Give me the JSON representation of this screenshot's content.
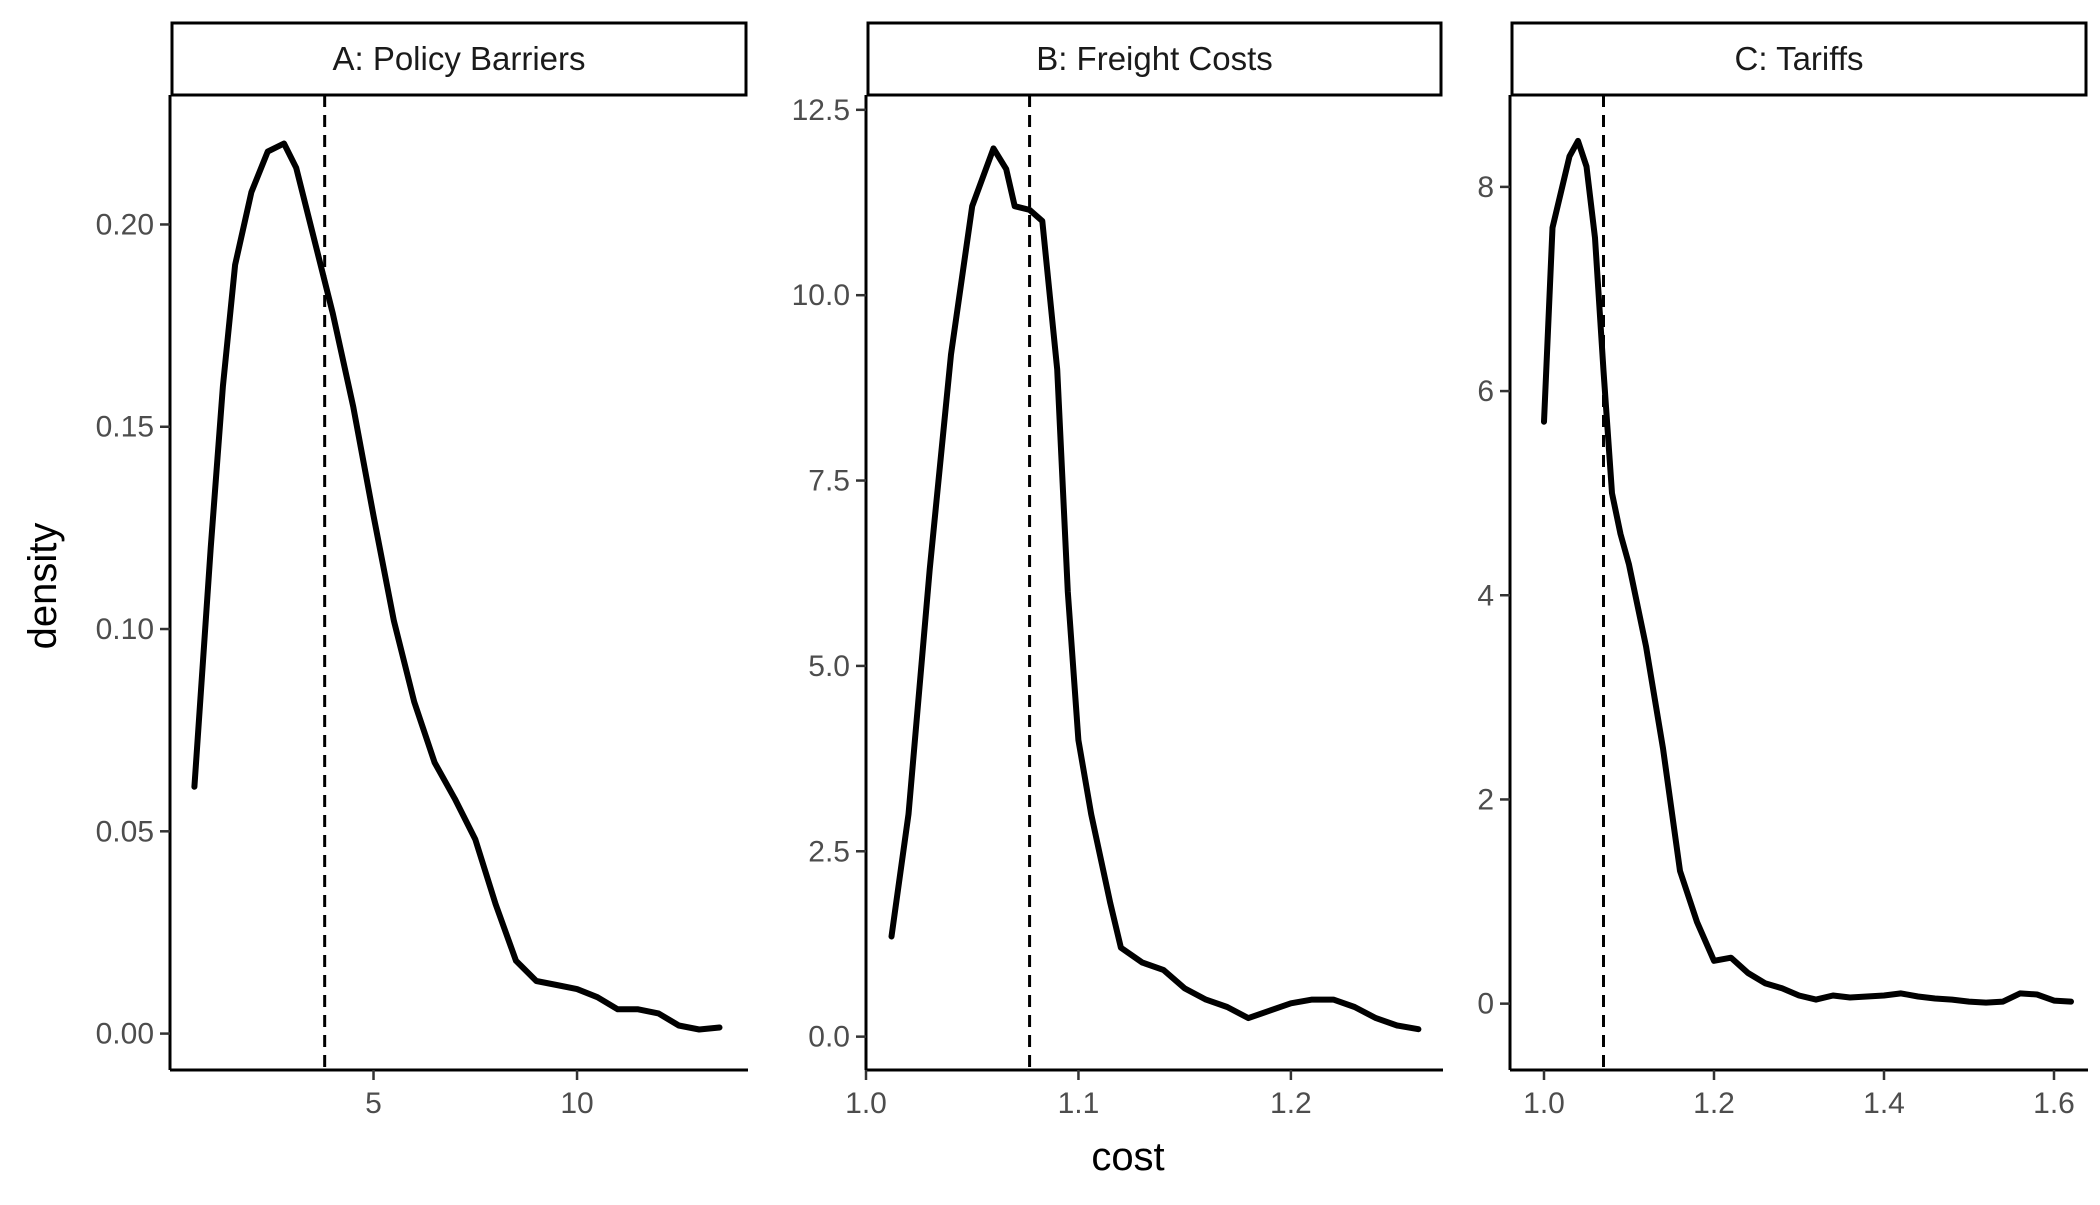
{
  "chart_data": {
    "type": "line",
    "shared_xlabel": "cost",
    "shared_ylabel": "density",
    "grid": false,
    "legend": "none",
    "line_color": "#000000",
    "panels": [
      {
        "strip_label": "A: Policy Barriers",
        "xlim": [
          0.0,
          14.2
        ],
        "ylim": [
          -0.009,
          0.232
        ],
        "xticks": [
          5,
          10
        ],
        "xtick_labels": [
          "5",
          "10"
        ],
        "yticks": [
          0.0,
          0.05,
          0.1,
          0.15,
          0.2
        ],
        "ytick_labels": [
          "0.00",
          "0.05",
          "0.10",
          "0.15",
          "0.20"
        ],
        "reference_line_x": 3.8,
        "density_curve": [
          [
            0.6,
            0.061
          ],
          [
            1.0,
            0.12
          ],
          [
            1.3,
            0.16
          ],
          [
            1.6,
            0.19
          ],
          [
            2.0,
            0.208
          ],
          [
            2.4,
            0.218
          ],
          [
            2.8,
            0.22
          ],
          [
            3.1,
            0.214
          ],
          [
            3.5,
            0.198
          ],
          [
            4.0,
            0.178
          ],
          [
            4.5,
            0.155
          ],
          [
            5.0,
            0.128
          ],
          [
            5.5,
            0.102
          ],
          [
            6.0,
            0.082
          ],
          [
            6.5,
            0.067
          ],
          [
            7.0,
            0.058
          ],
          [
            7.5,
            0.048
          ],
          [
            8.0,
            0.032
          ],
          [
            8.5,
            0.018
          ],
          [
            9.0,
            0.013
          ],
          [
            9.5,
            0.012
          ],
          [
            10.0,
            0.011
          ],
          [
            10.5,
            0.009
          ],
          [
            11.0,
            0.006
          ],
          [
            11.5,
            0.006
          ],
          [
            12.0,
            0.005
          ],
          [
            12.5,
            0.002
          ],
          [
            13.0,
            0.001
          ],
          [
            13.5,
            0.0015
          ]
        ]
      },
      {
        "strip_label": "B: Freight Costs",
        "xlim": [
          1.0,
          1.2716
        ],
        "ylim": [
          -0.45,
          12.7
        ],
        "xticks": [
          1.0,
          1.1,
          1.2
        ],
        "xtick_labels": [
          "1.0",
          "1.1",
          "1.2"
        ],
        "yticks": [
          0.0,
          2.5,
          5.0,
          7.5,
          10.0,
          12.5
        ],
        "ytick_labels": [
          "0.0",
          "2.5",
          "5.0",
          "7.5",
          "10.0",
          "12.5"
        ],
        "reference_line_x": 1.077,
        "density_curve": [
          [
            1.012,
            1.35
          ],
          [
            1.02,
            3.0
          ],
          [
            1.03,
            6.3
          ],
          [
            1.04,
            9.2
          ],
          [
            1.05,
            11.2
          ],
          [
            1.06,
            11.98
          ],
          [
            1.066,
            11.7
          ],
          [
            1.07,
            11.2
          ],
          [
            1.077,
            11.15
          ],
          [
            1.083,
            11.0
          ],
          [
            1.09,
            9.0
          ],
          [
            1.095,
            6.0
          ],
          [
            1.1,
            4.0
          ],
          [
            1.106,
            3.0
          ],
          [
            1.115,
            1.8
          ],
          [
            1.12,
            1.2
          ],
          [
            1.13,
            1.0
          ],
          [
            1.14,
            0.9
          ],
          [
            1.15,
            0.65
          ],
          [
            1.16,
            0.5
          ],
          [
            1.17,
            0.4
          ],
          [
            1.18,
            0.25
          ],
          [
            1.19,
            0.35
          ],
          [
            1.2,
            0.45
          ],
          [
            1.21,
            0.5
          ],
          [
            1.22,
            0.5
          ],
          [
            1.23,
            0.4
          ],
          [
            1.24,
            0.25
          ],
          [
            1.25,
            0.15
          ],
          [
            1.26,
            0.1
          ]
        ]
      },
      {
        "strip_label": "C: Tariffs",
        "xlim": [
          0.96,
          1.64
        ],
        "ylim": [
          -0.65,
          8.9
        ],
        "xticks": [
          1.0,
          1.2,
          1.4,
          1.6
        ],
        "xtick_labels": [
          "1.0",
          "1.2",
          "1.4",
          "1.6"
        ],
        "yticks": [
          0,
          2,
          4,
          6,
          8
        ],
        "ytick_labels": [
          "0",
          "2",
          "4",
          "6",
          "8"
        ],
        "reference_line_x": 1.07,
        "density_curve": [
          [
            1.0,
            5.7
          ],
          [
            1.01,
            7.6
          ],
          [
            1.02,
            7.95
          ],
          [
            1.03,
            8.3
          ],
          [
            1.04,
            8.45
          ],
          [
            1.05,
            8.2
          ],
          [
            1.06,
            7.5
          ],
          [
            1.07,
            6.2
          ],
          [
            1.08,
            5.0
          ],
          [
            1.09,
            4.6
          ],
          [
            1.1,
            4.3
          ],
          [
            1.12,
            3.5
          ],
          [
            1.14,
            2.5
          ],
          [
            1.16,
            1.3
          ],
          [
            1.18,
            0.8
          ],
          [
            1.2,
            0.42
          ],
          [
            1.22,
            0.45
          ],
          [
            1.24,
            0.3
          ],
          [
            1.26,
            0.2
          ],
          [
            1.28,
            0.15
          ],
          [
            1.3,
            0.08
          ],
          [
            1.32,
            0.04
          ],
          [
            1.34,
            0.08
          ],
          [
            1.36,
            0.06
          ],
          [
            1.38,
            0.07
          ],
          [
            1.4,
            0.08
          ],
          [
            1.42,
            0.1
          ],
          [
            1.44,
            0.07
          ],
          [
            1.46,
            0.05
          ],
          [
            1.48,
            0.04
          ],
          [
            1.5,
            0.02
          ],
          [
            1.52,
            0.01
          ],
          [
            1.54,
            0.02
          ],
          [
            1.56,
            0.1
          ],
          [
            1.58,
            0.09
          ],
          [
            1.6,
            0.03
          ],
          [
            1.62,
            0.02
          ]
        ]
      }
    ]
  }
}
